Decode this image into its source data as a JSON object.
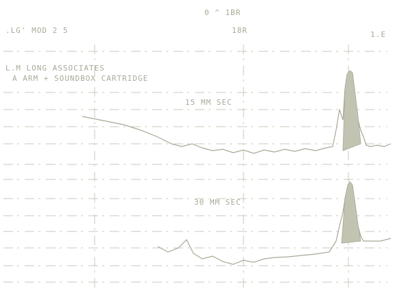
{
  "header": {
    "level": "0 ^ 1BR",
    "setting": ".LG' MOD 2 5",
    "reference": "18R",
    "corner": "1.E"
  },
  "caption": {
    "company": "L.M LONG ASSOCIATES",
    "subject": "A ARM + SOUNDBOX CARTRIDGE"
  },
  "traces": {
    "upper": "15 MM SEC",
    "lower": "30 MM SEC"
  }
}
